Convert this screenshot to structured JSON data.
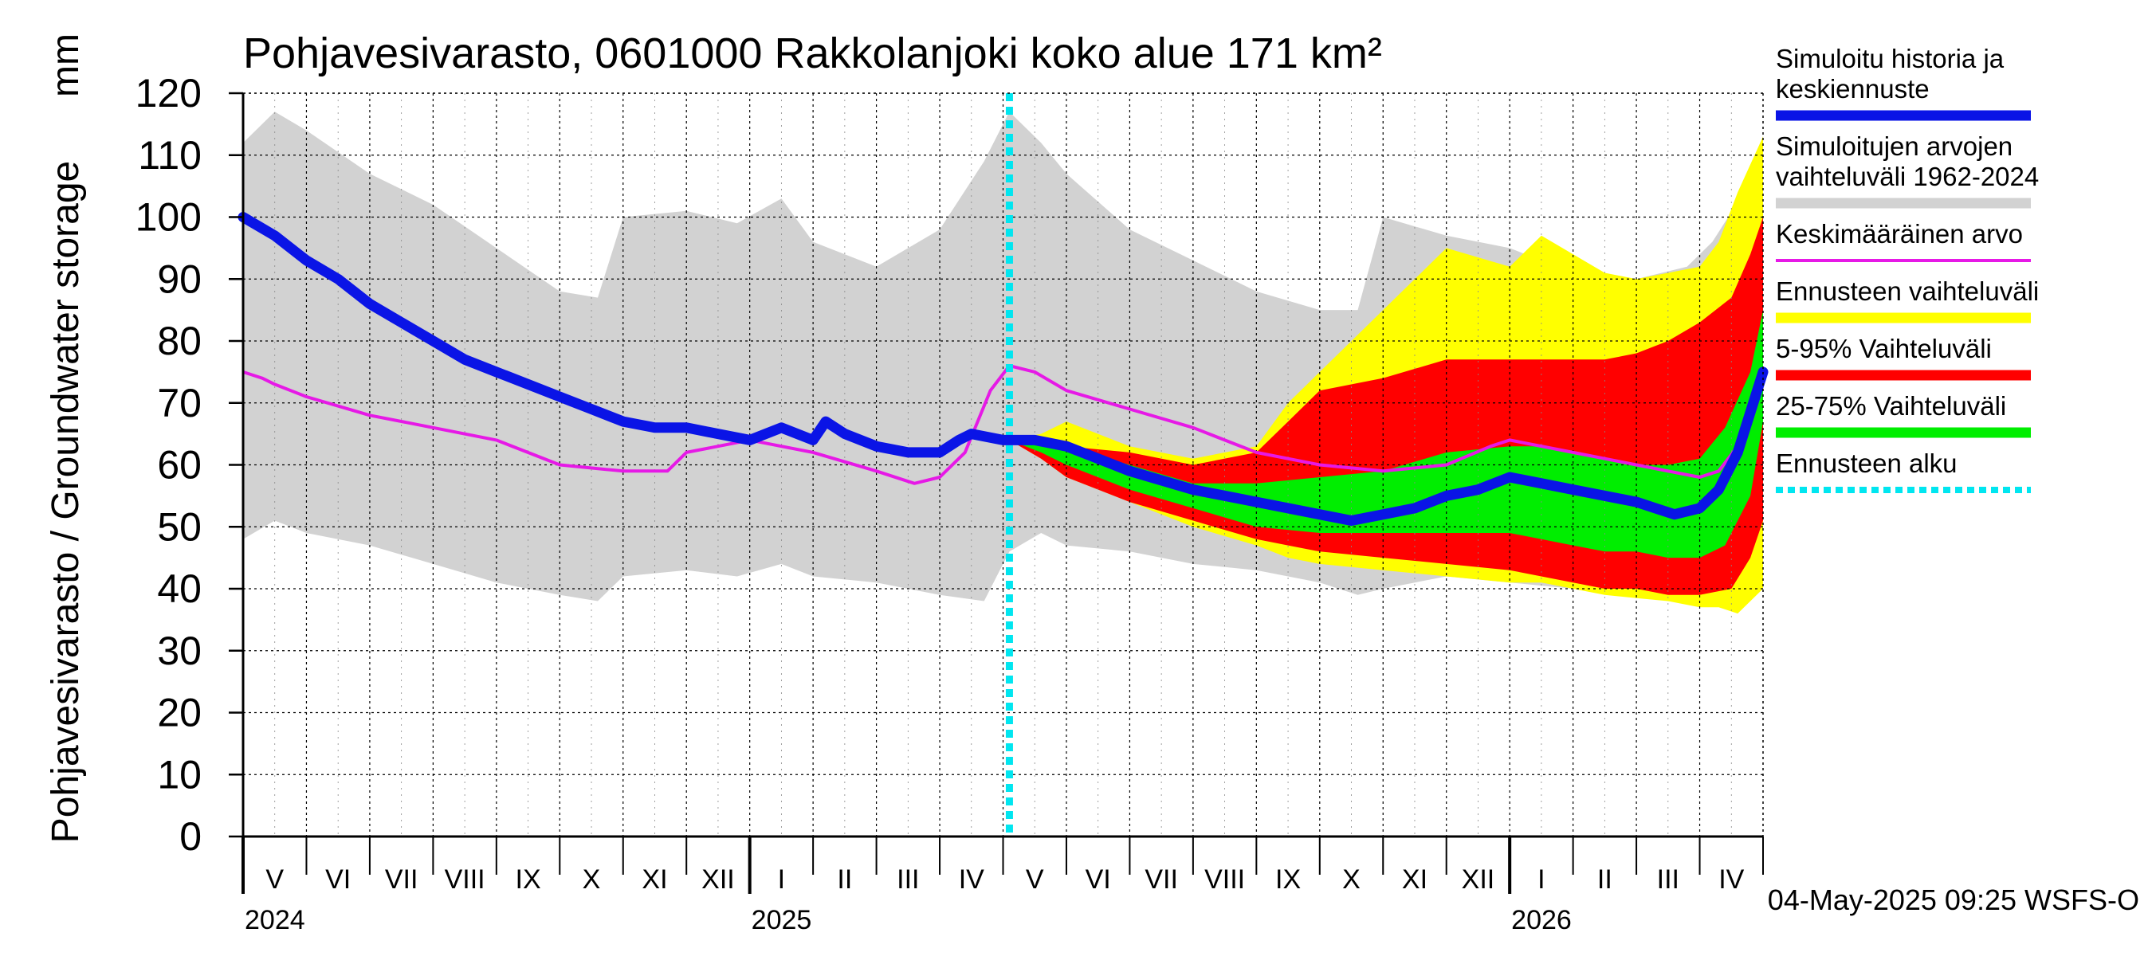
{
  "chart_data": {
    "type": "area",
    "title": "Pohjavesivarasto, 0601000 Rakkolanjoki koko alue 171 km²",
    "ylabel": "Pohjavesivarasto / Groundwater storage",
    "yunit": "mm",
    "ylim": [
      0,
      120
    ],
    "yticks": [
      0,
      10,
      20,
      30,
      40,
      50,
      60,
      70,
      80,
      90,
      100,
      110,
      120
    ],
    "grid": true,
    "x_range_months": [
      0,
      24
    ],
    "x_start": "2024-05-01",
    "month_labels": [
      "V",
      "VI",
      "VII",
      "VIII",
      "IX",
      "X",
      "XI",
      "XII",
      "I",
      "II",
      "III",
      "IV",
      "V",
      "VI",
      "VII",
      "VIII",
      "IX",
      "X",
      "XI",
      "XII",
      "I",
      "II",
      "III",
      "IV"
    ],
    "year_labels": [
      {
        "label": "2024",
        "month_index": 0
      },
      {
        "label": "2025",
        "month_index": 8
      },
      {
        "label": "2026",
        "month_index": 20
      }
    ],
    "forecast_start_month": 12.1,
    "footer": "04-May-2025 09:25 WSFS-O",
    "legend": [
      {
        "name": "Simuloitu historia ja keskiennuste",
        "lines": [
          "Simuloitu historia ja",
          "keskiennuste"
        ],
        "color": "#0a14e6",
        "style": "thick"
      },
      {
        "name": "Simuloitujen arvojen vaihteluväli 1962-2024",
        "lines": [
          "Simuloitujen arvojen",
          "vaihteluväli 1962-2024"
        ],
        "color": "#d2d2d2",
        "style": "band"
      },
      {
        "name": "Keskimääräinen arvo",
        "lines": [
          "Keskimääräinen arvo"
        ],
        "color": "#e619e6",
        "style": "thin"
      },
      {
        "name": "Ennusteen vaihteluväli",
        "lines": [
          "Ennusteen vaihteluväli"
        ],
        "color": "#ffff00",
        "style": "band"
      },
      {
        "name": "5-95% Vaihteluväli",
        "lines": [
          "5-95% Vaihteluväli"
        ],
        "color": "#ff0000",
        "style": "band"
      },
      {
        "name": "25-75% Vaihteluväli",
        "lines": [
          "25-75% Vaihteluväli"
        ],
        "color": "#00ee00",
        "style": "band"
      },
      {
        "name": "Ennusteen alku",
        "lines": [
          "Ennusteen alku"
        ],
        "color": "#00e6f0",
        "style": "dotted"
      }
    ],
    "series": [
      {
        "name": "Simuloitujen arvojen vaihteluväli 1962-2024",
        "kind": "band",
        "x": [
          0,
          0.5,
          1,
          2,
          3,
          4,
          5,
          5.6,
          6,
          7,
          7.8,
          8.5,
          9,
          10,
          10.5,
          11,
          11.7,
          12.1,
          12.6,
          13,
          14,
          15,
          16,
          17,
          17.6,
          18,
          19,
          20,
          21,
          22,
          22.8,
          23.2,
          23.7,
          24
        ],
        "lower": [
          48,
          51,
          49,
          47,
          44,
          41,
          39,
          38,
          42,
          43,
          42,
          44,
          42,
          41,
          40,
          39,
          38,
          46,
          49,
          47,
          46,
          44,
          43,
          41,
          39,
          40,
          42,
          41,
          40,
          39,
          38,
          39,
          45,
          49
        ],
        "upper": [
          112,
          117,
          114,
          107,
          102,
          95,
          88,
          87,
          100,
          101,
          99,
          103,
          96,
          92,
          95,
          98,
          109,
          117,
          112,
          107,
          98,
          93,
          88,
          85,
          85,
          100,
          97,
          95,
          91,
          90,
          92,
          96,
          104,
          111
        ]
      },
      {
        "name": "Ennusteen vaihteluväli",
        "kind": "band",
        "x": [
          12.1,
          12.6,
          13,
          14,
          15,
          16,
          16.5,
          17,
          18,
          19,
          20,
          20.5,
          21,
          21.5,
          22,
          22.5,
          23,
          23.3,
          23.6,
          24
        ],
        "lower": [
          64,
          61,
          58,
          54,
          50,
          47,
          45,
          44,
          43,
          42,
          41,
          41,
          40,
          39,
          38.5,
          38,
          37,
          37,
          36,
          40
        ],
        "upper": [
          64,
          65,
          67,
          63,
          61,
          63,
          70,
          75,
          85,
          95,
          92,
          97,
          94,
          91,
          90,
          91,
          92,
          96,
          104,
          113
        ]
      },
      {
        "name": "5-95% Vaihteluväli",
        "kind": "band",
        "x": [
          12.1,
          12.6,
          13,
          14,
          15,
          16,
          16.5,
          17,
          18,
          19,
          20,
          20.5,
          21,
          21.5,
          22,
          22.5,
          23,
          23.5,
          23.8,
          24
        ],
        "lower": [
          64,
          61,
          58,
          54,
          51,
          48,
          47,
          46,
          45,
          44,
          43,
          42,
          41,
          40,
          40,
          39,
          39,
          40,
          45,
          51
        ],
        "upper": [
          64,
          64,
          63,
          62,
          60,
          62,
          67,
          72,
          74,
          77,
          77,
          77,
          77,
          77,
          78,
          80,
          83,
          87,
          94,
          100
        ]
      },
      {
        "name": "25-75% Vaihteluväli",
        "kind": "band",
        "x": [
          12.1,
          12.6,
          13,
          14,
          15,
          16,
          17,
          18,
          19,
          20,
          20.5,
          21,
          21.5,
          22,
          22.5,
          23,
          23.4,
          23.8,
          24
        ],
        "lower": [
          64,
          62,
          60,
          56,
          53,
          50,
          49,
          49,
          49,
          49,
          48,
          47,
          46,
          46,
          45,
          45,
          47,
          55,
          67
        ],
        "upper": [
          64,
          64,
          63,
          60,
          57,
          57,
          58,
          59,
          62,
          63,
          63,
          62,
          61,
          60,
          60,
          61,
          66,
          75,
          85
        ]
      },
      {
        "name": "Keskimääräinen arvo",
        "kind": "line",
        "x": [
          0,
          0.3,
          0.5,
          1,
          2,
          3,
          4,
          5,
          6,
          6.7,
          7,
          8,
          8.5,
          9,
          10,
          10.6,
          11,
          11.4,
          11.8,
          12.1,
          12.5,
          13,
          14,
          15,
          16,
          17,
          18,
          19,
          19.7,
          20,
          21,
          21.5,
          22,
          22.5,
          23,
          23.3,
          23.6,
          24
        ],
        "values": [
          75,
          74,
          73,
          71,
          68,
          66,
          64,
          60,
          59,
          59,
          62,
          64,
          63,
          62,
          59,
          57,
          58,
          62,
          72,
          76,
          75,
          72,
          69,
          66,
          62,
          60,
          59,
          60,
          63,
          64,
          62,
          61,
          60,
          59,
          58,
          59,
          63,
          75
        ]
      },
      {
        "name": "Simuloitu historia ja keskiennuste",
        "kind": "line",
        "x": [
          0,
          0.5,
          1,
          1.5,
          2,
          2.5,
          3,
          3.5,
          4,
          4.5,
          5,
          5.5,
          6,
          6.5,
          7,
          7.5,
          8,
          8.5,
          9,
          9.2,
          9.5,
          10,
          10.5,
          11,
          11.3,
          11.5,
          12,
          12.5,
          13,
          14,
          15,
          16,
          17,
          17.5,
          18,
          18.5,
          19,
          19.5,
          20,
          20.5,
          21,
          21.5,
          22,
          22.3,
          22.6,
          23,
          23.3,
          23.6,
          24
        ],
        "values": [
          100,
          97,
          93,
          90,
          86,
          83,
          80,
          77,
          75,
          73,
          71,
          69,
          67,
          66,
          66,
          65,
          64,
          66,
          64,
          67,
          65,
          63,
          62,
          62,
          64,
          65,
          64,
          64,
          63,
          59,
          56,
          54,
          52,
          51,
          52,
          53,
          55,
          56,
          58,
          57,
          56,
          55,
          54,
          53,
          52,
          53,
          56,
          62,
          75
        ]
      }
    ]
  }
}
